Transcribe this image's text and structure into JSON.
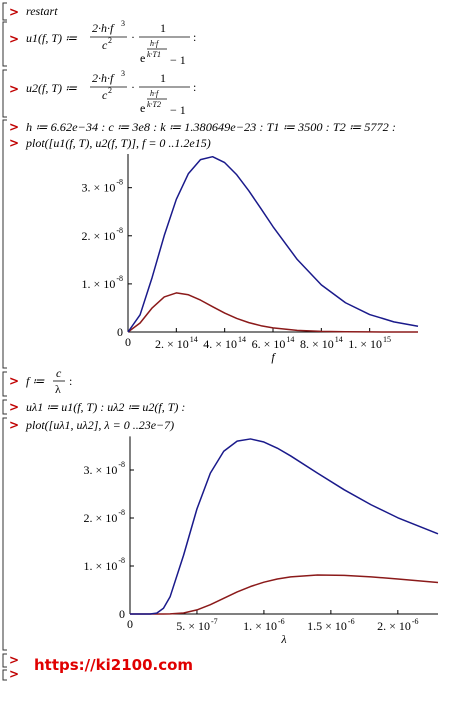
{
  "cmd_restart": "restart",
  "u1": {
    "lhs": "u1(f, T) ≔",
    "num": "2·h·f",
    "num_exp": "3",
    "den": "c",
    "den_exp": "2",
    "dot": "·",
    "one": "1",
    "e": "e",
    "e_num": "h·f",
    "e_den": "k·T1",
    "minus": "− 1",
    "end": ":"
  },
  "u2": {
    "lhs": "u2(f, T) ≔",
    "num": "2·h·f",
    "num_exp": "3",
    "den": "c",
    "den_exp": "2",
    "dot": "·",
    "one": "1",
    "e": "e",
    "e_num": "h·f",
    "e_den": "k·T2",
    "minus": "− 1",
    "end": ":"
  },
  "constants": "h ≔ 6.62e−34 : c ≔ 3e8 : k ≔ 1.380649e−23 : T1 ≔ 3500 : T2 ≔ 5772 :",
  "plot1_cmd": "plot([u1(f, T), u2(f, T)], f = 0 ..1.2e15)",
  "f_def": {
    "lhs": "f ≔",
    "num": "c",
    "den": "λ",
    "end": ":"
  },
  "ul_def": "uλ1 ≔ u1(f, T) : uλ2 ≔ u2(f, T) :",
  "plot2_cmd": "plot([uλ1, uλ2], λ = 0 ..23e−7)",
  "watermark": "https://ki2100.com",
  "chart_data": [
    {
      "type": "line",
      "x_label": "f",
      "x": [
        0,
        50000000000000.0,
        100000000000000.0,
        150000000000000.0,
        200000000000000.0,
        250000000000000.0,
        300000000000000.0,
        350000000000000.0,
        400000000000000.0,
        450000000000000.0,
        500000000000000.0,
        550000000000000.0,
        600000000000000.0,
        700000000000000.0,
        800000000000000.0,
        900000000000000.0,
        1000000000000000.0,
        1100000000000000.0,
        1200000000000000.0
      ],
      "series": [
        {
          "color": "#8b1a1a",
          "values": [
            0,
            1.869e-09,
            5.012e-09,
            7.295e-09,
            8.125e-09,
            7.734e-09,
            6.626e-09,
            5.26e-09,
            3.943e-09,
            2.823e-09,
            1.95e-09,
            1.308e-09,
            8.56e-10,
            3.45e-10,
            1.31e-10,
            4.7e-11,
            1.65e-11,
            5.6e-12,
            1.8e-12
          ]
        },
        {
          "color": "#1a1a8b",
          "values": [
            0,
            3.571e-09,
            1.136e-08,
            2.005e-08,
            2.758e-08,
            3.293e-08,
            3.583e-08,
            3.644e-08,
            3.521e-08,
            3.268e-08,
            2.935e-08,
            2.565e-08,
            2.19e-08,
            1.509e-08,
            9.8e-09,
            6.08e-09,
            3.63e-09,
            2.11e-09,
            1.19e-09
          ]
        }
      ],
      "xlim": [
        0,
        1200000000000000.0
      ],
      "ylim": [
        0,
        3.7e-08
      ],
      "xticks": [
        0,
        {
          "value": 200000000000000.0,
          "label": "2. × 10",
          "exponent": "14"
        },
        {
          "value": 400000000000000.0,
          "label": "4. × 10",
          "exponent": "14"
        },
        {
          "value": 600000000000000.0,
          "label": "6. × 10",
          "exponent": "14"
        },
        {
          "value": 800000000000000.0,
          "label": "8. × 10",
          "exponent": "14"
        },
        {
          "value": 1000000000000000.0,
          "label": "1. × 10",
          "exponent": "15"
        }
      ],
      "yticks": [
        0,
        {
          "value": 1e-08,
          "label": "1. × 10",
          "exponent": "-8"
        },
        {
          "value": 2e-08,
          "label": "2. × 10",
          "exponent": "-8"
        },
        {
          "value": 3e-08,
          "label": "3. × 10",
          "exponent": "-8"
        }
      ]
    },
    {
      "type": "line",
      "x_label": "λ",
      "x": [
        0,
        1e-07,
        1.5e-07,
        2e-07,
        2.5e-07,
        3e-07,
        4e-07,
        5e-07,
        6e-07,
        7e-07,
        8e-07,
        9e-07,
        1e-06,
        1.1e-06,
        1.2e-06,
        1.4e-06,
        1.6e-06,
        1.8e-06,
        2e-06,
        2.3e-06
      ],
      "series": [
        {
          "color": "#8b1a1a",
          "values": [
            0,
            0,
            0,
            5.9e-14,
            1.8e-12,
            1.65e-11,
            2.14e-10,
            8.56e-10,
            1.95e-09,
            3.275e-09,
            4.585e-09,
            5.724e-09,
            6.626e-09,
            7.29e-09,
            7.734e-09,
            8.119e-09,
            8.047e-09,
            7.731e-09,
            7.295e-09,
            6.566e-09
          ]
        },
        {
          "color": "#1a1a8b",
          "values": [
            0,
            6e-15,
            7.18e-12,
            1.924e-10,
            1.191e-09,
            3.631e-09,
            1.2243e-08,
            2.19e-08,
            2.935e-08,
            3.39e-08,
            3.602e-08,
            3.647e-08,
            3.583e-08,
            3.455e-08,
            3.293e-08,
            2.936e-08,
            2.587e-08,
            2.276e-08,
            2.005e-08,
            1.67e-08
          ]
        }
      ],
      "xlim": [
        0,
        2.3e-06
      ],
      "ylim": [
        0,
        3.7e-08
      ],
      "xticks": [
        0,
        {
          "value": 5e-07,
          "label": "5. × 10",
          "exponent": "-7"
        },
        {
          "value": 1e-06,
          "label": "1. × 10",
          "exponent": "-6"
        },
        {
          "value": 1.5e-06,
          "label": "1.5 × 10",
          "exponent": "-6"
        },
        {
          "value": 2e-06,
          "label": "2. × 10",
          "exponent": "-6"
        }
      ],
      "yticks": [
        0,
        {
          "value": 1e-08,
          "label": "1. × 10",
          "exponent": "-8"
        },
        {
          "value": 2e-08,
          "label": "2. × 10",
          "exponent": "-8"
        },
        {
          "value": 3e-08,
          "label": "3. × 10",
          "exponent": "-8"
        }
      ]
    }
  ]
}
